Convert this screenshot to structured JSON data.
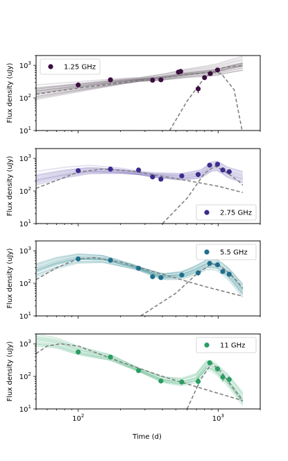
{
  "chart_data": {
    "type": "scatter",
    "xlabel": "Time (d)",
    "ylabel": "Flux density (uJy)",
    "xscale": "log",
    "yscale": "log",
    "xlim": [
      50,
      2000
    ],
    "ylim": [
      10,
      2000
    ],
    "x_tick_labels": [
      {
        "value": 100,
        "base": "10",
        "exp": "2"
      },
      {
        "value": 1000,
        "base": "10",
        "exp": "3"
      }
    ],
    "y_tick_labels": [
      {
        "value": 10,
        "base": "10",
        "exp": "1"
      },
      {
        "value": 100,
        "base": "10",
        "exp": "2"
      },
      {
        "value": 1000,
        "base": "10",
        "exp": "3"
      }
    ],
    "panels": [
      {
        "legend": "1.25 GHz",
        "legend_loc": "upper-left",
        "color": "#3b0f3f",
        "band_color": "#4a3b4c",
        "points": [
          {
            "x": 100,
            "y": 250,
            "err": 40
          },
          {
            "x": 170,
            "y": 360,
            "err": 40
          },
          {
            "x": 340,
            "y": 350,
            "err": 35
          },
          {
            "x": 390,
            "y": 360,
            "err": 35
          },
          {
            "x": 520,
            "y": 620,
            "err": 60
          },
          {
            "x": 540,
            "y": 650,
            "err": 60
          },
          {
            "x": 720,
            "y": 190,
            "err": 50
          },
          {
            "x": 800,
            "y": 420,
            "err": 50
          },
          {
            "x": 880,
            "y": 560,
            "err": 60
          },
          {
            "x": 990,
            "y": 720,
            "err": 80
          }
        ],
        "band": [
          [
            50,
            150
          ],
          [
            100,
            220
          ],
          [
            200,
            320
          ],
          [
            400,
            430
          ],
          [
            600,
            560
          ],
          [
            800,
            640
          ],
          [
            1000,
            720
          ],
          [
            1200,
            900
          ],
          [
            1500,
            1100
          ]
        ],
        "dashed_forward": [
          [
            50,
            130
          ],
          [
            100,
            200
          ],
          [
            300,
            360
          ],
          [
            600,
            520
          ],
          [
            900,
            620
          ],
          [
            1050,
            560
          ],
          [
            1300,
            180
          ],
          [
            1500,
            8
          ]
        ],
        "dashed_bump": [
          [
            450,
            10
          ],
          [
            600,
            80
          ],
          [
            800,
            420
          ],
          [
            1000,
            800
          ],
          [
            1200,
            900
          ],
          [
            1500,
            1000
          ]
        ]
      },
      {
        "legend": "2.75 GHz",
        "legend_loc": "lower-right",
        "color": "#3a2c8d",
        "band_color": "#7a70b8",
        "points": [
          {
            "x": 100,
            "y": 420,
            "err": 30
          },
          {
            "x": 170,
            "y": 470,
            "err": 30
          },
          {
            "x": 270,
            "y": 440,
            "err": 30
          },
          {
            "x": 340,
            "y": 270,
            "err": 25
          },
          {
            "x": 390,
            "y": 230,
            "err": 25
          },
          {
            "x": 550,
            "y": 290,
            "err": 30
          },
          {
            "x": 720,
            "y": 320,
            "err": 35
          },
          {
            "x": 870,
            "y": 620,
            "err": 50
          },
          {
            "x": 990,
            "y": 660,
            "err": 50
          },
          {
            "x": 1080,
            "y": 440,
            "err": 40
          },
          {
            "x": 1200,
            "y": 390,
            "err": 40
          }
        ],
        "band": [
          [
            50,
            260
          ],
          [
            80,
            380
          ],
          [
            120,
            470
          ],
          [
            200,
            430
          ],
          [
            350,
            320
          ],
          [
            550,
            290
          ],
          [
            750,
            360
          ],
          [
            900,
            620
          ],
          [
            1000,
            660
          ],
          [
            1150,
            430
          ],
          [
            1500,
            300
          ]
        ],
        "dashed_forward": [
          [
            50,
            120
          ],
          [
            100,
            380
          ],
          [
            150,
            470
          ],
          [
            250,
            400
          ],
          [
            500,
            240
          ],
          [
            1000,
            140
          ],
          [
            1500,
            90
          ]
        ],
        "dashed_bump": [
          [
            400,
            10
          ],
          [
            600,
            60
          ],
          [
            800,
            350
          ],
          [
            950,
            580
          ],
          [
            1100,
            420
          ],
          [
            1400,
            200
          ],
          [
            1500,
            150
          ]
        ]
      },
      {
        "legend": "5.5 GHz",
        "legend_loc": "upper-right",
        "color": "#1f6e8c",
        "band_color": "#2d8c94",
        "points": [
          {
            "x": 100,
            "y": 560,
            "err": 30
          },
          {
            "x": 170,
            "y": 510,
            "err": 30
          },
          {
            "x": 270,
            "y": 290,
            "err": 25
          },
          {
            "x": 340,
            "y": 160,
            "err": 20
          },
          {
            "x": 390,
            "y": 150,
            "err": 20
          },
          {
            "x": 550,
            "y": 180,
            "err": 25
          },
          {
            "x": 720,
            "y": 210,
            "err": 40
          },
          {
            "x": 870,
            "y": 410,
            "err": 40
          },
          {
            "x": 990,
            "y": 370,
            "err": 35
          },
          {
            "x": 1080,
            "y": 230,
            "err": 30
          },
          {
            "x": 1200,
            "y": 190,
            "err": 30
          }
        ],
        "band": [
          [
            50,
            250
          ],
          [
            70,
            420
          ],
          [
            100,
            580
          ],
          [
            150,
            560
          ],
          [
            250,
            320
          ],
          [
            400,
            160
          ],
          [
            550,
            175
          ],
          [
            700,
            260
          ],
          [
            850,
            400
          ],
          [
            1000,
            360
          ],
          [
            1200,
            190
          ],
          [
            1500,
            60
          ]
        ],
        "dashed_forward": [
          [
            50,
            130
          ],
          [
            70,
            300
          ],
          [
            100,
            560
          ],
          [
            130,
            610
          ],
          [
            200,
            450
          ],
          [
            400,
            190
          ],
          [
            800,
            80
          ],
          [
            1500,
            40
          ]
        ],
        "dashed_bump": [
          [
            280,
            10
          ],
          [
            500,
            50
          ],
          [
            700,
            190
          ],
          [
            900,
            400
          ],
          [
            1050,
            330
          ],
          [
            1300,
            150
          ],
          [
            1500,
            70
          ]
        ]
      },
      {
        "legend": "11 GHz",
        "legend_loc": "upper-right",
        "color": "#2a9d62",
        "band_color": "#5cb88c",
        "points": [
          {
            "x": 100,
            "y": 560,
            "err": 30
          },
          {
            "x": 170,
            "y": 390,
            "err": 30
          },
          {
            "x": 270,
            "y": 150,
            "err": 20
          },
          {
            "x": 390,
            "y": 72,
            "err": 12
          },
          {
            "x": 550,
            "y": 67,
            "err": 12
          },
          {
            "x": 720,
            "y": 70,
            "err": 20
          },
          {
            "x": 870,
            "y": 260,
            "err": 35
          },
          {
            "x": 990,
            "y": 170,
            "err": 30
          },
          {
            "x": 1080,
            "y": 95,
            "err": 25
          },
          {
            "x": 1200,
            "y": 80,
            "err": 20
          }
        ],
        "band": [
          [
            50,
            1300
          ],
          [
            70,
            1050
          ],
          [
            100,
            620
          ],
          [
            170,
            380
          ],
          [
            270,
            160
          ],
          [
            400,
            80
          ],
          [
            550,
            67
          ],
          [
            700,
            90
          ],
          [
            850,
            250
          ],
          [
            1000,
            150
          ],
          [
            1200,
            70
          ],
          [
            1500,
            20
          ]
        ],
        "dashed_forward": [
          [
            50,
            500
          ],
          [
            60,
            850
          ],
          [
            75,
            1000
          ],
          [
            100,
            850
          ],
          [
            200,
            280
          ],
          [
            400,
            100
          ],
          [
            800,
            40
          ],
          [
            1500,
            18
          ]
        ],
        "dashed_bump": [
          [
            600,
            10
          ],
          [
            750,
            80
          ],
          [
            900,
            250
          ],
          [
            1050,
            140
          ],
          [
            1300,
            40
          ],
          [
            1500,
            18
          ]
        ]
      }
    ]
  }
}
